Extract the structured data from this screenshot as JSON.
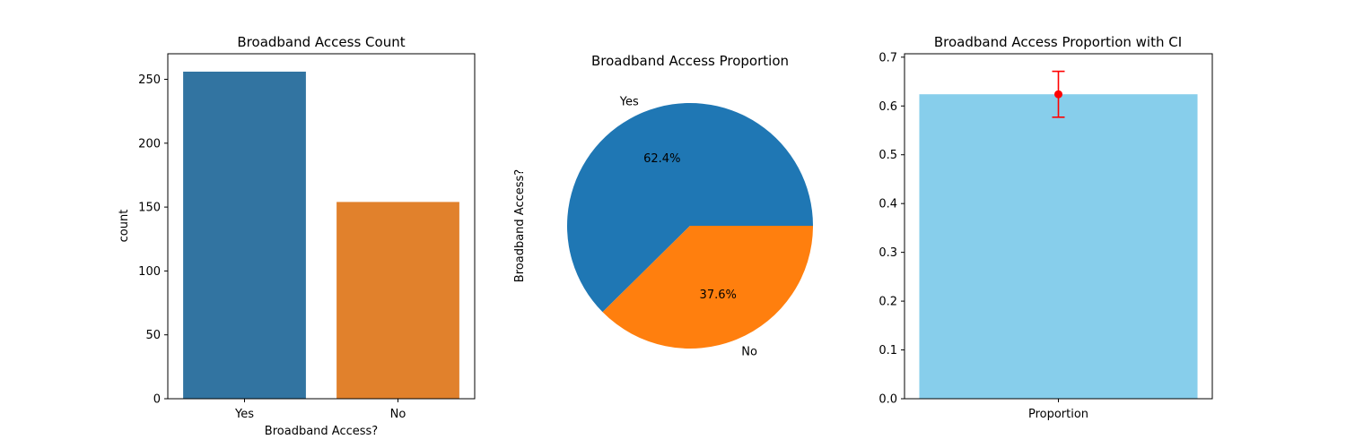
{
  "chart_data": [
    {
      "type": "bar",
      "title": "Broadband Access Count",
      "xlabel": "Broadband Access?",
      "ylabel": "count",
      "categories": [
        "Yes",
        "No"
      ],
      "values": [
        256,
        154
      ],
      "colors": [
        "#3274a1",
        "#e1812c"
      ],
      "ylim": [
        0,
        270
      ],
      "yticks": [
        0,
        50,
        100,
        150,
        200,
        250
      ],
      "grid": false
    },
    {
      "type": "pie",
      "title": "Broadband Access Proportion",
      "ylabel": "Broadband Access?",
      "labels": [
        "Yes",
        "No"
      ],
      "values": [
        62.4,
        37.6
      ],
      "pct_labels": [
        "62.4%",
        "37.6%"
      ],
      "colors": [
        "#1f77b4",
        "#ff7f0e"
      ]
    },
    {
      "type": "bar",
      "title": "Broadband Access Proportion with CI",
      "categories": [
        "Proportion"
      ],
      "values": [
        0.624
      ],
      "ci": [
        0.577,
        0.671
      ],
      "bar_color": "#87ceeb",
      "error_color": "#ff0000",
      "ylim": [
        0,
        0.707
      ],
      "yticks": [
        "0.0",
        "0.1",
        "0.2",
        "0.3",
        "0.4",
        "0.5",
        "0.6",
        "0.7"
      ],
      "grid": false
    }
  ]
}
